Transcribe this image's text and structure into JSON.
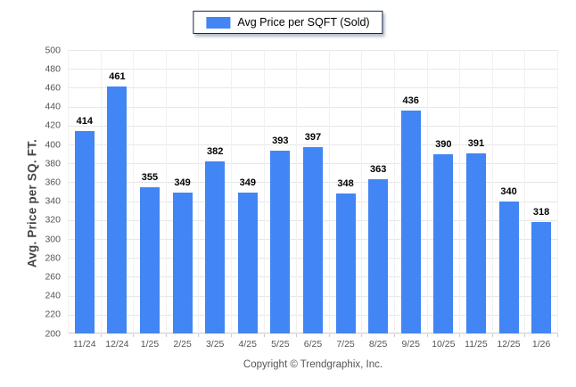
{
  "legend": {
    "label": "Avg Price per SQFT (Sold)"
  },
  "footer": {
    "copyright": "Copyright © Trendgraphix, Inc."
  },
  "colors": {
    "bar": "#4285f4",
    "gridline": "#e7e7e7",
    "axis_line": "#c9c9c9",
    "vertical_gridline": "#f1f1f1",
    "legend_border": "#1a2a44",
    "value_label": "#000000",
    "tick_label": "#555555",
    "y_title": "#444444"
  },
  "chart_data": {
    "type": "bar",
    "title": "",
    "xlabel": "",
    "ylabel": "Avg. Price per SQ. FT.",
    "categories": [
      "11/24",
      "12/24",
      "1/25",
      "2/25",
      "3/25",
      "4/25",
      "5/25",
      "6/25",
      "7/25",
      "8/25",
      "9/25",
      "10/25",
      "11/25",
      "12/25",
      "1/26"
    ],
    "series": [
      {
        "name": "Avg Price per SQFT (Sold)",
        "values": [
          414,
          461,
          355,
          349,
          382,
          349,
          393,
          397,
          348,
          363,
          436,
          390,
          391,
          340,
          318
        ]
      }
    ],
    "ylim": [
      200,
      500
    ],
    "ytick_step": 20,
    "grid": "horizontal-major with faint vertical category separators",
    "legend_position": "top-center"
  }
}
